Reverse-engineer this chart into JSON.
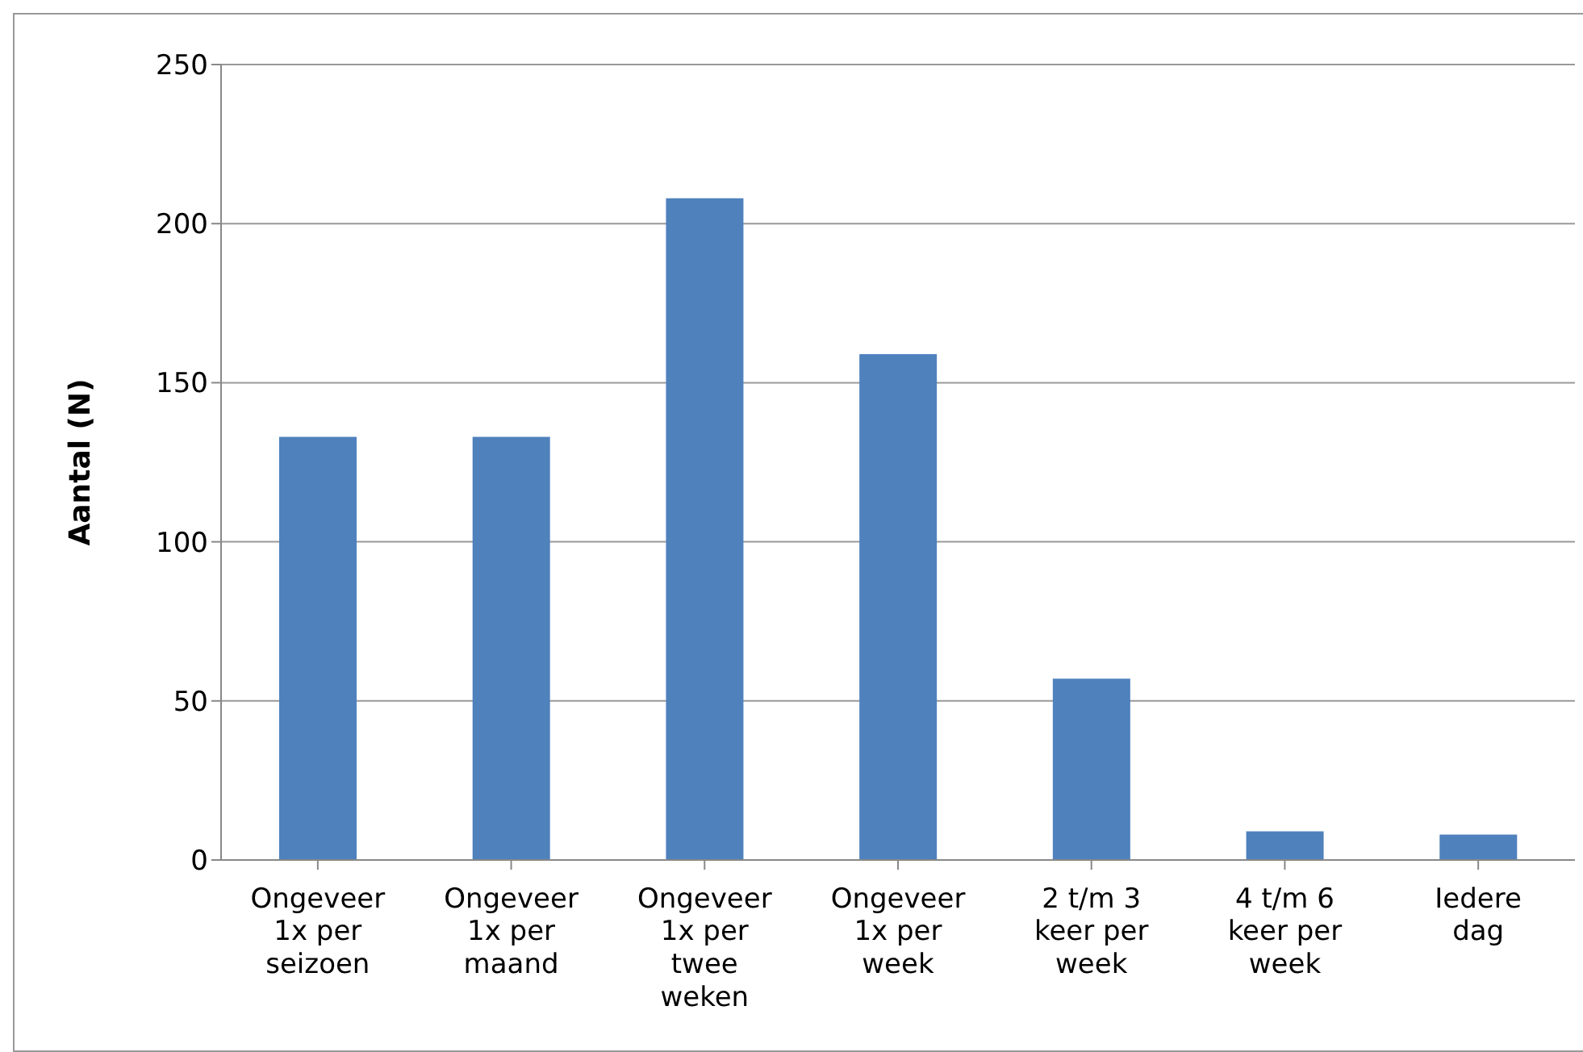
{
  "chart_data": {
    "type": "bar",
    "ylabel": "Aantal (N)",
    "categories": [
      "Ongeveer 1x per seizoen",
      "Ongeveer 1x per maand",
      "Ongeveer 1x per twee weken",
      "Ongeveer 1x per week",
      "2 t/m 3 keer per week",
      "4 t/m 6 keer per week",
      "Iedere dag"
    ],
    "values": [
      133,
      133,
      208,
      159,
      57,
      9,
      8
    ],
    "color": "#4f81bd",
    "ylim": [
      0,
      250
    ],
    "yticks": [
      0,
      50,
      100,
      150,
      200,
      250
    ],
    "grid": "y",
    "legend": false
  }
}
